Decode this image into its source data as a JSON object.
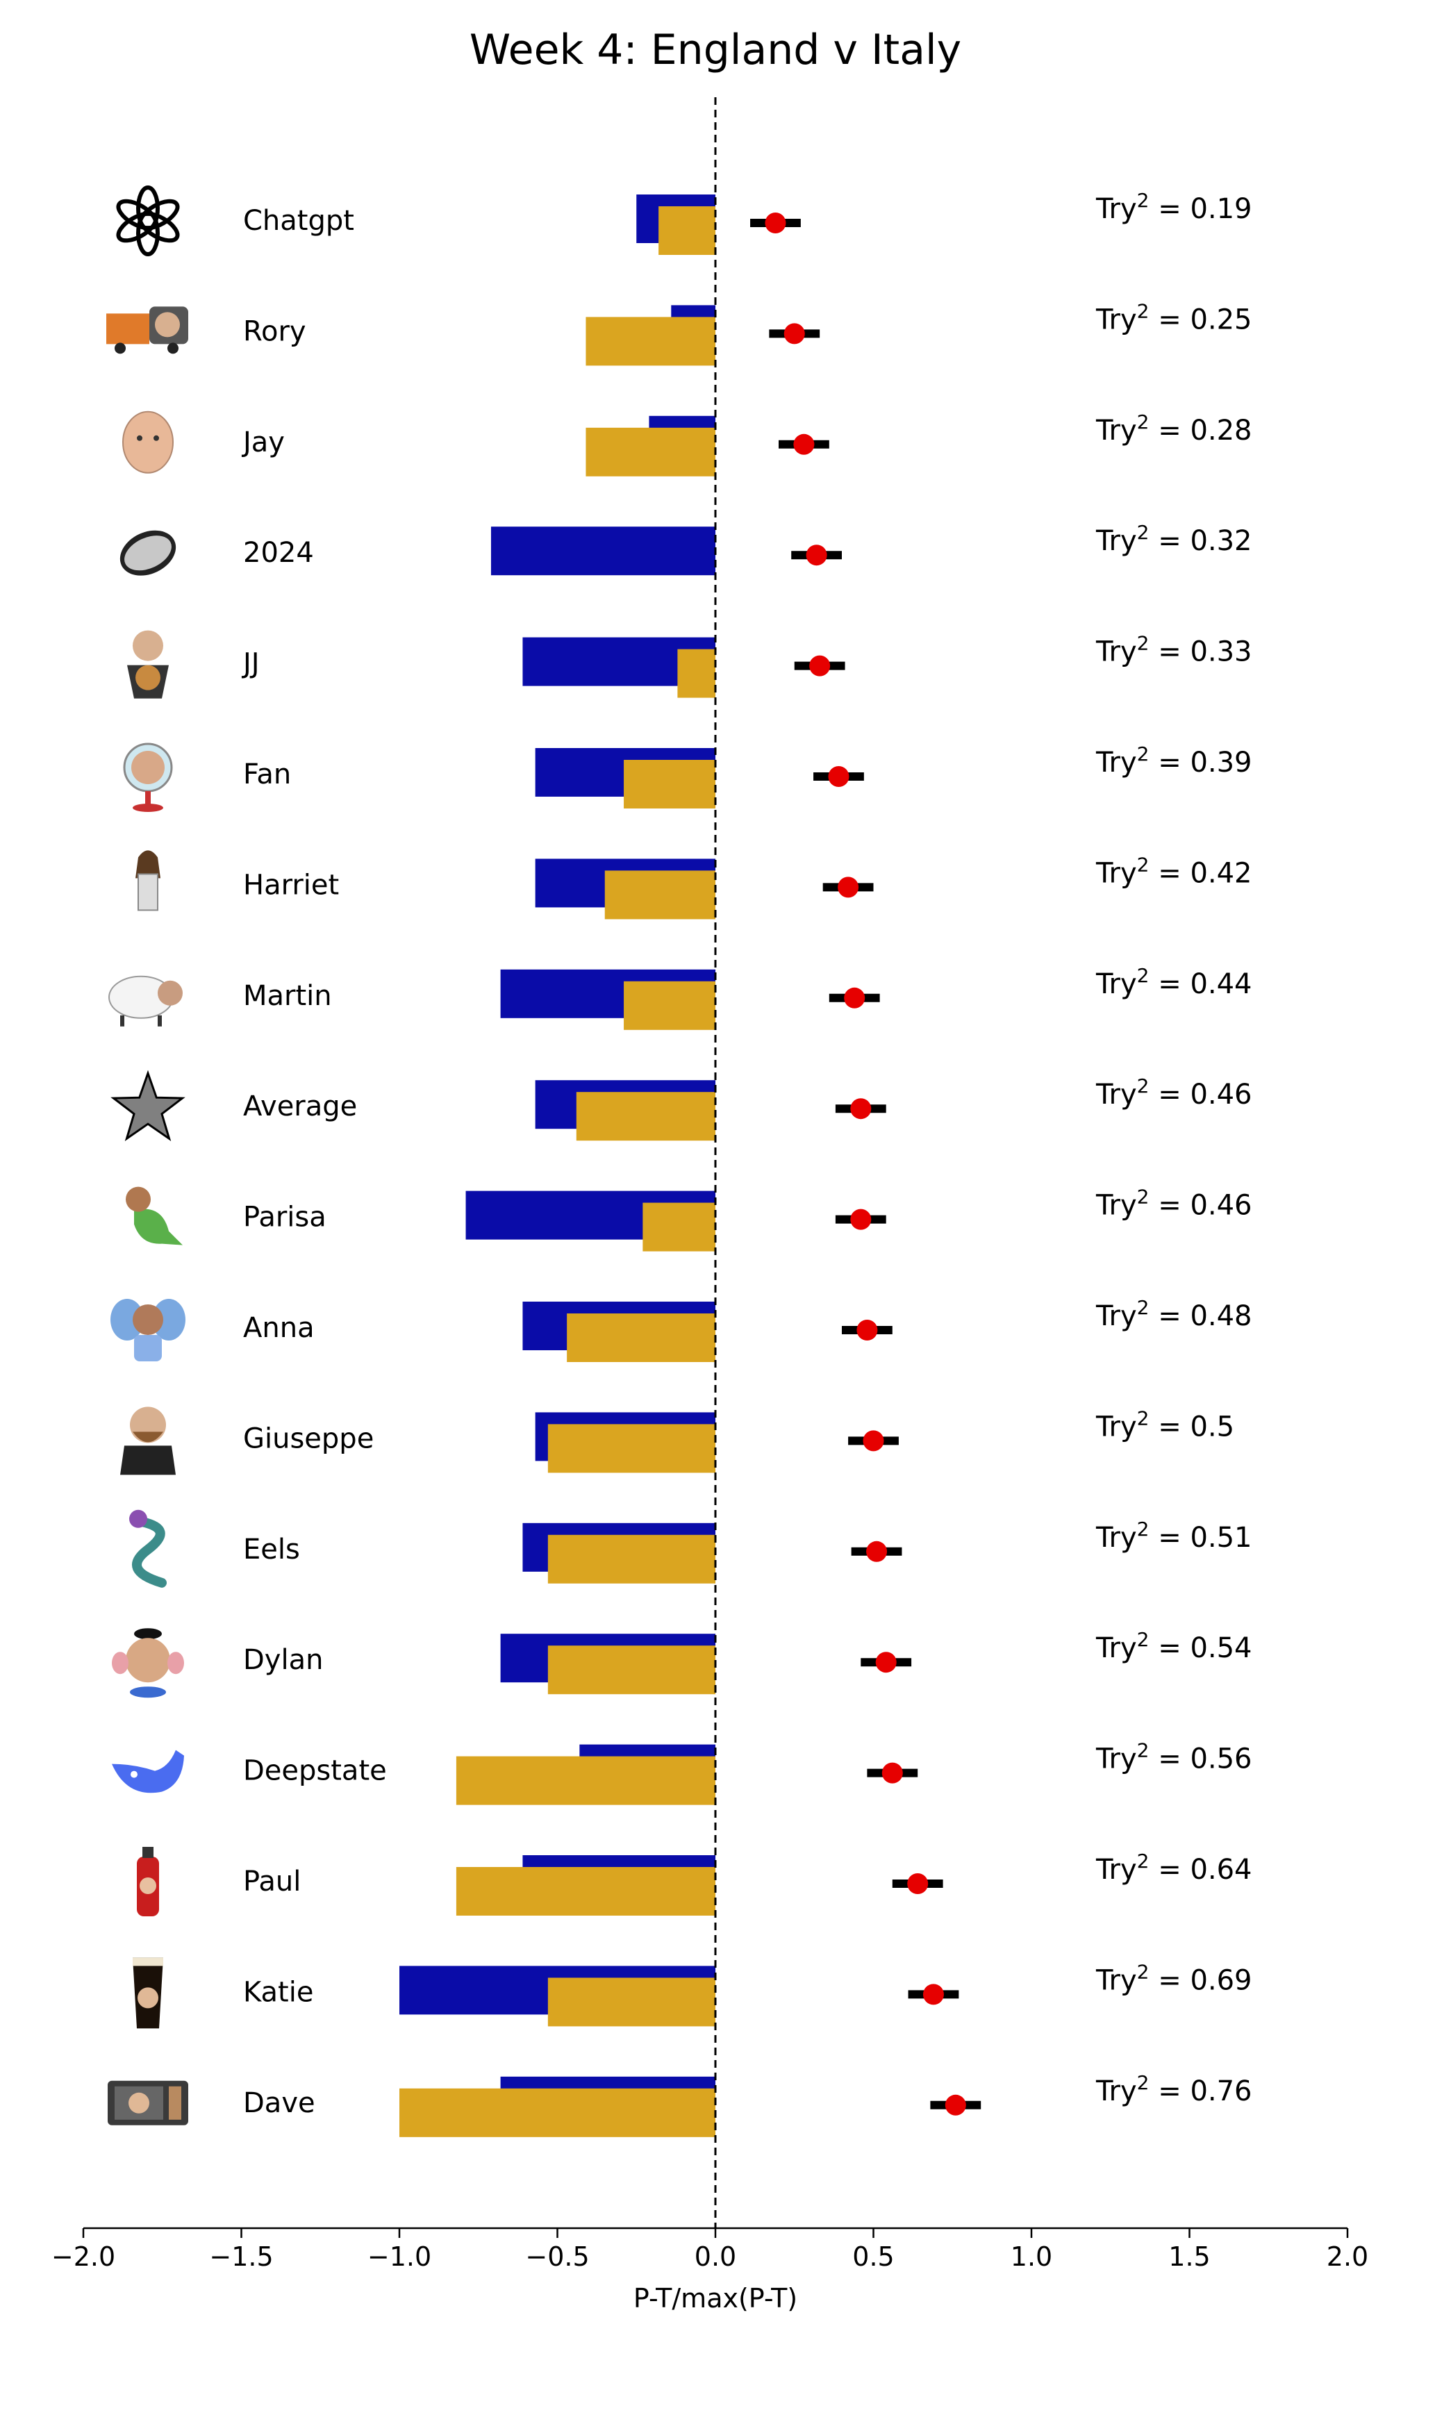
{
  "chart_data": {
    "type": "bar",
    "title": "Week 4: England v Italy",
    "xlabel": "P-T/max(P-T)",
    "ylabel": "",
    "xlim": [
      -2.0,
      2.0
    ],
    "xticks": [
      "−2.0",
      "−1.5",
      "−1.0",
      "−0.5",
      "0.0",
      "0.5",
      "1.0",
      "1.5",
      "2.0"
    ],
    "xtick_values": [
      -2.0,
      -1.5,
      -1.0,
      -0.5,
      0.0,
      0.5,
      1.0,
      1.5,
      2.0
    ],
    "reference_line": 0.0,
    "score_label_prefix": "Try",
    "score_label_exponent": "2",
    "colors": {
      "blue_bar": "#0a0ca8",
      "gold_bar": "#daa520",
      "point": "#e60000",
      "errorbar": "#000000",
      "average_icon": "#808080"
    },
    "players": [
      {
        "name": "Chatgpt",
        "icon": "openai-logo-icon",
        "blue": -0.25,
        "gold": -0.18,
        "point": 0.19,
        "err": 0.08,
        "score_label": "= 0.19"
      },
      {
        "name": "Rory",
        "icon": "truck-avatar-icon",
        "blue": -0.14,
        "gold": -0.41,
        "point": 0.25,
        "err": 0.08,
        "score_label": "= 0.25"
      },
      {
        "name": "Jay",
        "icon": "child-face-icon",
        "blue": -0.21,
        "gold": -0.41,
        "point": 0.28,
        "err": 0.08,
        "score_label": "= 0.28"
      },
      {
        "name": "2024",
        "icon": "rugby-ball-2024-icon",
        "blue": -0.71,
        "gold": 0.0,
        "point": 0.32,
        "err": 0.08,
        "score_label": "= 0.32"
      },
      {
        "name": "JJ",
        "icon": "man-with-dog-icon",
        "blue": -0.61,
        "gold": -0.12,
        "point": 0.33,
        "err": 0.08,
        "score_label": "= 0.33"
      },
      {
        "name": "Fan",
        "icon": "fan-face-icon",
        "blue": -0.57,
        "gold": -0.29,
        "point": 0.39,
        "err": 0.08,
        "score_label": "= 0.39"
      },
      {
        "name": "Harriet",
        "icon": "woman-standing-icon",
        "blue": -0.57,
        "gold": -0.35,
        "point": 0.42,
        "err": 0.08,
        "score_label": "= 0.42"
      },
      {
        "name": "Martin",
        "icon": "sheep-face-icon",
        "blue": -0.68,
        "gold": -0.29,
        "point": 0.44,
        "err": 0.08,
        "score_label": "= 0.44"
      },
      {
        "name": "Average",
        "icon": "star-icon",
        "blue": -0.57,
        "gold": -0.44,
        "point": 0.46,
        "err": 0.08,
        "score_label": "= 0.46"
      },
      {
        "name": "Parisa",
        "icon": "dinosaur-face-icon",
        "blue": -0.79,
        "gold": -0.23,
        "point": 0.46,
        "err": 0.08,
        "score_label": "= 0.46"
      },
      {
        "name": "Anna",
        "icon": "elephant-face-icon",
        "blue": -0.61,
        "gold": -0.47,
        "point": 0.48,
        "err": 0.08,
        "score_label": "= 0.48"
      },
      {
        "name": "Giuseppe",
        "icon": "bearded-man-icon",
        "blue": -0.57,
        "gold": -0.53,
        "point": 0.5,
        "err": 0.08,
        "score_label": "= 0.5"
      },
      {
        "name": "Eels",
        "icon": "eel-icon",
        "blue": -0.61,
        "gold": -0.53,
        "point": 0.51,
        "err": 0.08,
        "score_label": "= 0.51"
      },
      {
        "name": "Dylan",
        "icon": "potato-head-face-icon",
        "blue": -0.68,
        "gold": -0.53,
        "point": 0.54,
        "err": 0.08,
        "score_label": "= 0.54"
      },
      {
        "name": "Deepstate",
        "icon": "whale-logo-icon",
        "blue": -0.43,
        "gold": -0.82,
        "point": 0.56,
        "err": 0.08,
        "score_label": "= 0.56"
      },
      {
        "name": "Paul",
        "icon": "fire-extinguisher-icon",
        "blue": -0.61,
        "gold": -0.82,
        "point": 0.64,
        "err": 0.08,
        "score_label": "= 0.64"
      },
      {
        "name": "Katie",
        "icon": "pint-glass-face-icon",
        "blue": -1.0,
        "gold": -0.53,
        "point": 0.69,
        "err": 0.08,
        "score_label": "= 0.69"
      },
      {
        "name": "Dave",
        "icon": "microwave-face-icon",
        "blue": -0.68,
        "gold": -1.0,
        "point": 0.76,
        "err": 0.08,
        "score_label": "= 0.76"
      }
    ]
  }
}
